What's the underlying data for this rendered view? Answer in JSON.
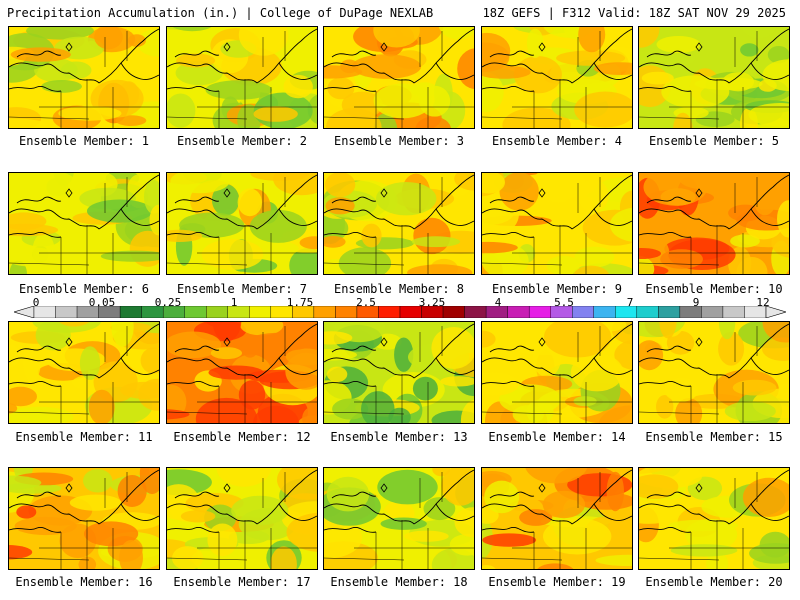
{
  "header": {
    "title_left": "Precipitation Accumulation (in.) | College of DuPage NEXLAB",
    "title_right": "18Z GEFS | F312 Valid: 18Z SAT NOV 29 2025"
  },
  "caption_prefix": "Ensemble Member:",
  "members": [
    {
      "label": "Ensemble Member: 1",
      "wetness": 0.45
    },
    {
      "label": "Ensemble Member: 2",
      "wetness": 0.4
    },
    {
      "label": "Ensemble Member: 3",
      "wetness": 0.55
    },
    {
      "label": "Ensemble Member: 4",
      "wetness": 0.45
    },
    {
      "label": "Ensemble Member: 5",
      "wetness": 0.3
    },
    {
      "label": "Ensemble Member: 6",
      "wetness": 0.35
    },
    {
      "label": "Ensemble Member: 7",
      "wetness": 0.35
    },
    {
      "label": "Ensemble Member: 8",
      "wetness": 0.5
    },
    {
      "label": "Ensemble Member: 9",
      "wetness": 0.55
    },
    {
      "label": "Ensemble Member: 10",
      "wetness": 0.7
    },
    {
      "label": "Ensemble Member: 11",
      "wetness": 0.45
    },
    {
      "label": "Ensemble Member: 12",
      "wetness": 0.85
    },
    {
      "label": "Ensemble Member: 13",
      "wetness": 0.2
    },
    {
      "label": "Ensemble Member: 14",
      "wetness": 0.45
    },
    {
      "label": "Ensemble Member: 15",
      "wetness": 0.45
    },
    {
      "label": "Ensemble Member: 16",
      "wetness": 0.6
    },
    {
      "label": "Ensemble Member: 17",
      "wetness": 0.35
    },
    {
      "label": "Ensemble Member: 18",
      "wetness": 0.35
    },
    {
      "label": "Ensemble Member: 19",
      "wetness": 0.6
    },
    {
      "label": "Ensemble Member: 20",
      "wetness": 0.45
    }
  ],
  "colorbar": {
    "tick_labels": [
      "0",
      "0.05",
      "0.25",
      "1",
      "1.75",
      "2.5",
      "3.25",
      "4",
      "5.5",
      "7",
      "9",
      "12"
    ],
    "colors": [
      "#e6e6e6",
      "#c8c8c8",
      "#a0a0a0",
      "#7d7d7d",
      "#1e7a32",
      "#2d9640",
      "#4caf3c",
      "#6ec832",
      "#9ad21e",
      "#c8e614",
      "#f0f000",
      "#ffe600",
      "#ffc800",
      "#ffa000",
      "#ff8200",
      "#ff5a00",
      "#ff1e00",
      "#e60000",
      "#c80000",
      "#a00000",
      "#8c1446",
      "#a01e82",
      "#c81eb4",
      "#e61ee6",
      "#b45ae6",
      "#8282f0",
      "#3cb4f0",
      "#1ee6f0",
      "#1ecdcd",
      "#2da0a0",
      "#7d7d7d",
      "#a0a0a0",
      "#c8c8c8",
      "#e6e6e6"
    ]
  }
}
